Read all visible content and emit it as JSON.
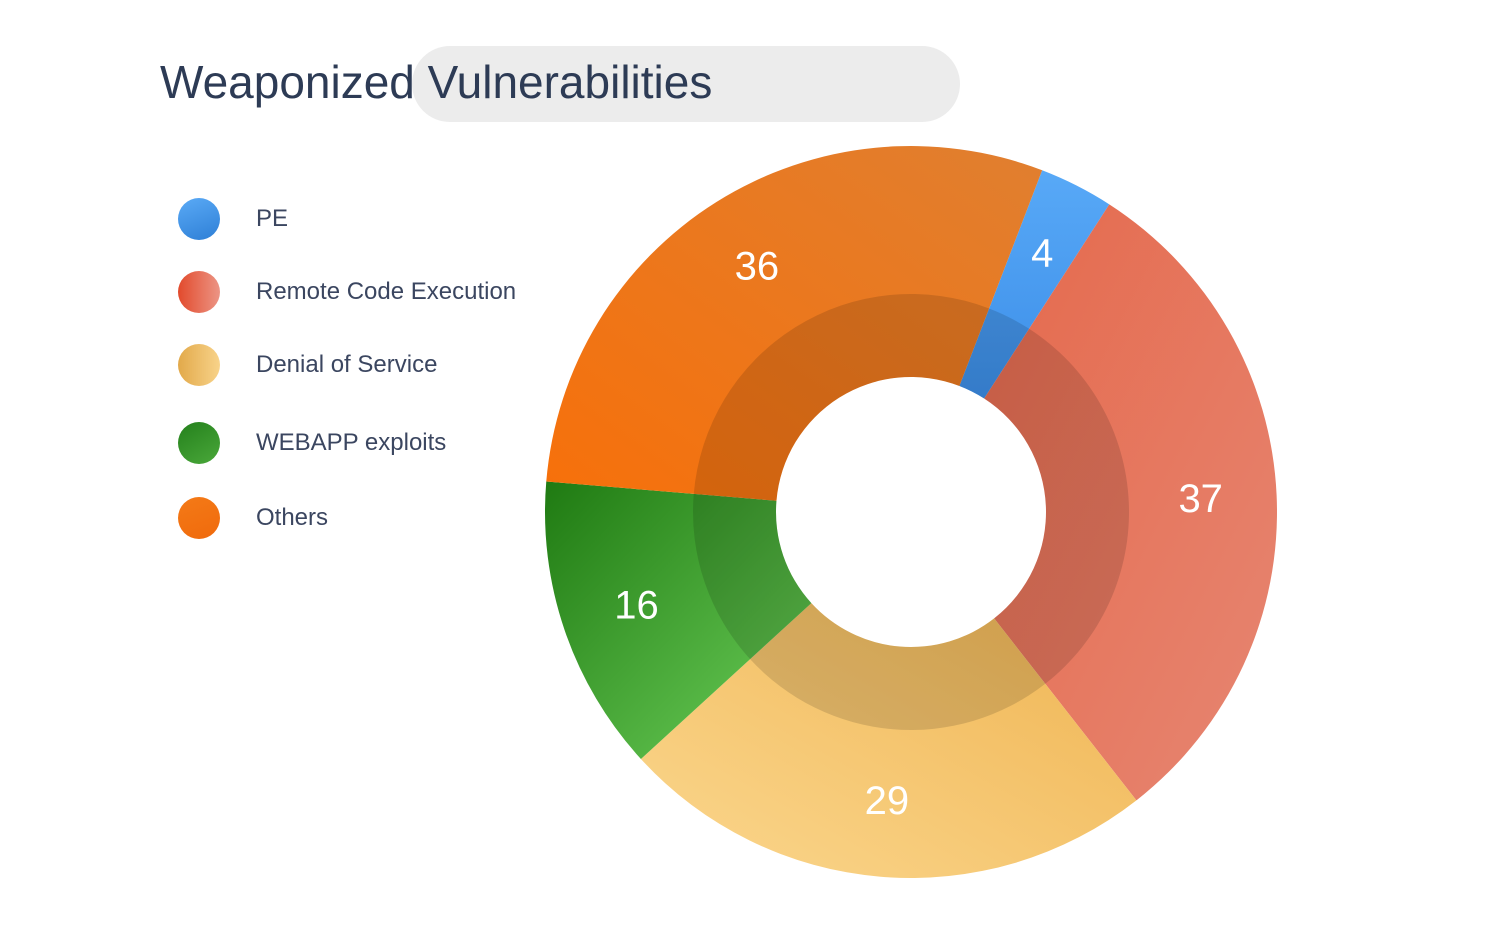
{
  "chart": {
    "title": "Weaponized Vulnerabilities"
  },
  "chart_data": {
    "type": "pie",
    "variant": "donut",
    "title": "Weaponized Vulnerabilities",
    "categories": [
      "PE",
      "Remote Code Execution",
      "Denial of Service",
      "WEBAPP exploits",
      "Others"
    ],
    "values": [
      4,
      37,
      29,
      16,
      36
    ],
    "value_labels": [
      "4",
      "37",
      "29",
      "16",
      "36"
    ],
    "colors": [
      "#4a9bf0",
      "#e46f55",
      "#f4c36e",
      "#3a9a30",
      "#f07819"
    ],
    "legend_position": "left",
    "grid": false
  }
}
